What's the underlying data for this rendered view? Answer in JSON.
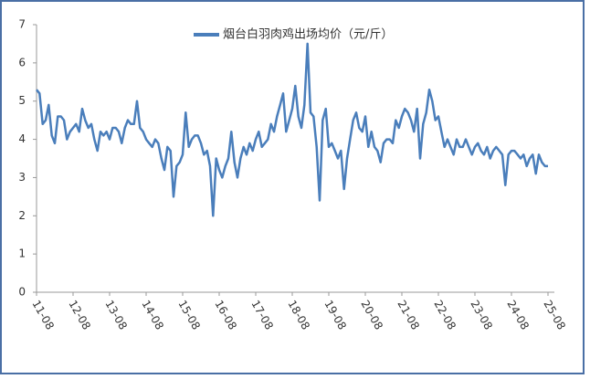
{
  "chart_data": {
    "type": "line",
    "legend": "烟台白羽肉鸡出场均价（元/斤）",
    "color": "#4a7ebb",
    "categories": [
      "11-08",
      null,
      null,
      null,
      null,
      null,
      null,
      null,
      null,
      null,
      null,
      null,
      "12-08",
      null,
      null,
      null,
      null,
      null,
      null,
      null,
      null,
      null,
      null,
      null,
      "13-08",
      null,
      null,
      null,
      null,
      null,
      null,
      null,
      null,
      null,
      null,
      null,
      "14-08",
      null,
      null,
      null,
      null,
      null,
      null,
      null,
      null,
      null,
      null,
      null,
      "15-08",
      null,
      null,
      null,
      null,
      null,
      null,
      null,
      null,
      null,
      null,
      null,
      "16-08",
      null,
      null,
      null,
      null,
      null,
      null,
      null,
      null,
      null,
      null,
      null,
      "17-08",
      null,
      null,
      null,
      null,
      null,
      null,
      null,
      null,
      null,
      null,
      null,
      "18-08",
      null,
      null,
      null,
      null,
      null,
      null,
      null,
      null,
      null,
      null,
      null,
      "19-08",
      null,
      null,
      null,
      null,
      null,
      null,
      null,
      null,
      null,
      null,
      null,
      "20-08",
      null,
      null,
      null,
      null,
      null,
      null,
      null,
      null,
      null,
      null,
      null,
      "21-08",
      null,
      null,
      null,
      null,
      null,
      null,
      null,
      null,
      null,
      null,
      null,
      "22-08",
      null,
      null,
      null,
      null,
      null,
      null,
      null,
      null,
      null,
      null,
      null,
      "23-08",
      null,
      null,
      null,
      null,
      null,
      null,
      null,
      null,
      null,
      null,
      null,
      "24-08",
      null,
      null,
      null,
      null,
      null,
      null,
      null,
      null,
      null,
      null,
      null,
      "25-08"
    ],
    "values": [
      5.3,
      5.2,
      4.4,
      4.5,
      4.9,
      4.1,
      3.9,
      4.6,
      4.6,
      4.5,
      4.0,
      4.2,
      4.3,
      4.4,
      4.2,
      4.8,
      4.5,
      4.3,
      4.4,
      4.0,
      3.7,
      4.2,
      4.1,
      4.2,
      4.0,
      4.3,
      4.3,
      4.2,
      3.9,
      4.3,
      4.5,
      4.4,
      4.4,
      5.0,
      4.3,
      4.2,
      4.0,
      3.9,
      3.8,
      4.0,
      3.9,
      3.5,
      3.2,
      3.8,
      3.7,
      2.5,
      3.3,
      3.4,
      3.6,
      4.7,
      3.8,
      4.0,
      4.1,
      4.1,
      3.9,
      3.6,
      3.7,
      3.3,
      2.0,
      3.5,
      3.2,
      3.0,
      3.3,
      3.5,
      4.2,
      3.4,
      3.0,
      3.5,
      3.8,
      3.6,
      3.9,
      3.7,
      4.0,
      4.2,
      3.8,
      3.9,
      4.0,
      4.4,
      4.2,
      4.6,
      4.9,
      5.2,
      4.2,
      4.5,
      4.8,
      5.4,
      4.6,
      4.3,
      4.9,
      6.5,
      4.7,
      4.6,
      3.8,
      2.4,
      4.5,
      4.8,
      3.8,
      3.9,
      3.7,
      3.5,
      3.7,
      2.7,
      3.5,
      4.0,
      4.5,
      4.7,
      4.3,
      4.2,
      4.6,
      3.8,
      4.2,
      3.8,
      3.7,
      3.4,
      3.9,
      4.0,
      4.0,
      3.9,
      4.5,
      4.3,
      4.6,
      4.8,
      4.7,
      4.5,
      4.2,
      4.8,
      3.5,
      4.4,
      4.7,
      5.3,
      5.0,
      4.5,
      4.6,
      4.2,
      3.8,
      4.0,
      3.8,
      3.6,
      4.0,
      3.8,
      3.8,
      4.0,
      3.8,
      3.6,
      3.8,
      3.9,
      3.7,
      3.6,
      3.8,
      3.5,
      3.7,
      3.8,
      3.7,
      3.6,
      2.8,
      3.6,
      3.7,
      3.7,
      3.6,
      3.5,
      3.6,
      3.3,
      3.5,
      3.6,
      3.1,
      3.6,
      3.4,
      3.3,
      3.3
    ],
    "ylim": [
      0,
      7
    ],
    "yticks": [
      0,
      1,
      2,
      3,
      4,
      5,
      6,
      7
    ],
    "grid": false
  }
}
